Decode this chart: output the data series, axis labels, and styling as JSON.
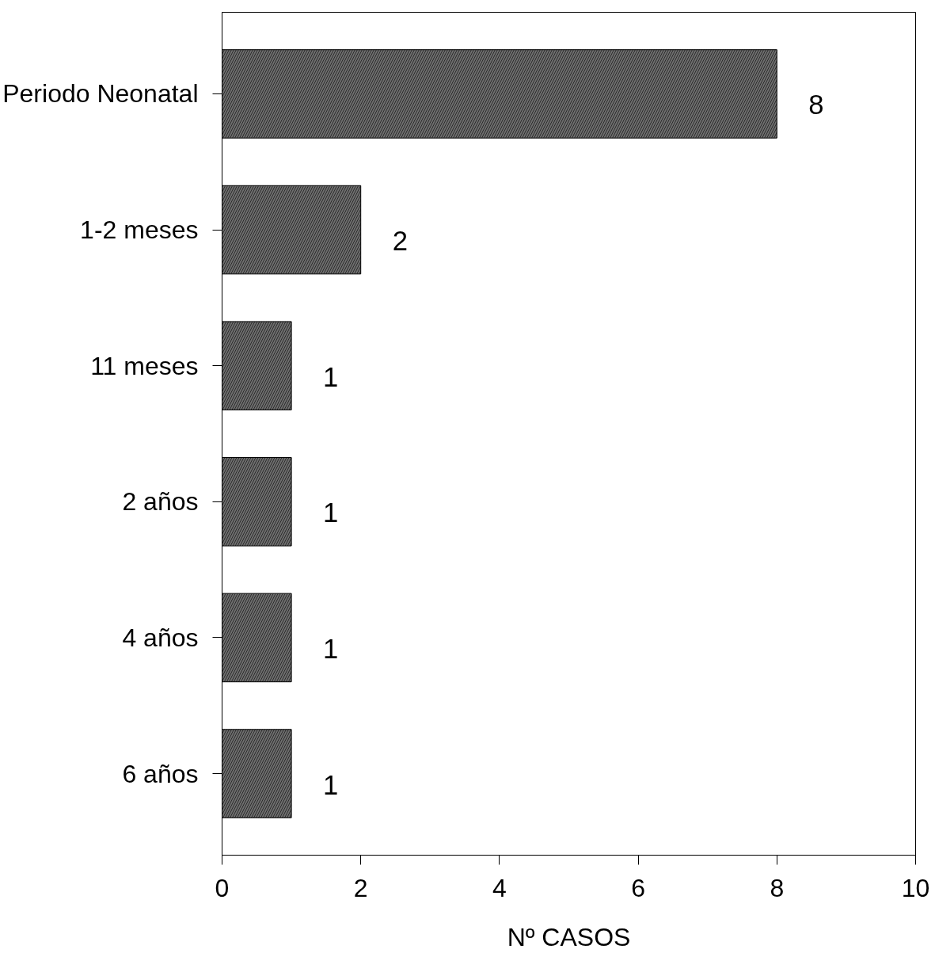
{
  "chart_data": {
    "type": "bar",
    "orientation": "horizontal",
    "xlabel": "Nº CASOS",
    "categories": [
      "Periodo Neonatal",
      "1-2 meses",
      "11 meses",
      "2 años",
      "4 años",
      "6 años"
    ],
    "values": [
      8,
      2,
      1,
      1,
      1,
      1
    ],
    "color": "#6e6e6e",
    "xlim": [
      0,
      10
    ],
    "xticks": [
      0,
      2,
      4,
      6,
      8,
      10
    ],
    "data_labels": true,
    "grid": false
  }
}
